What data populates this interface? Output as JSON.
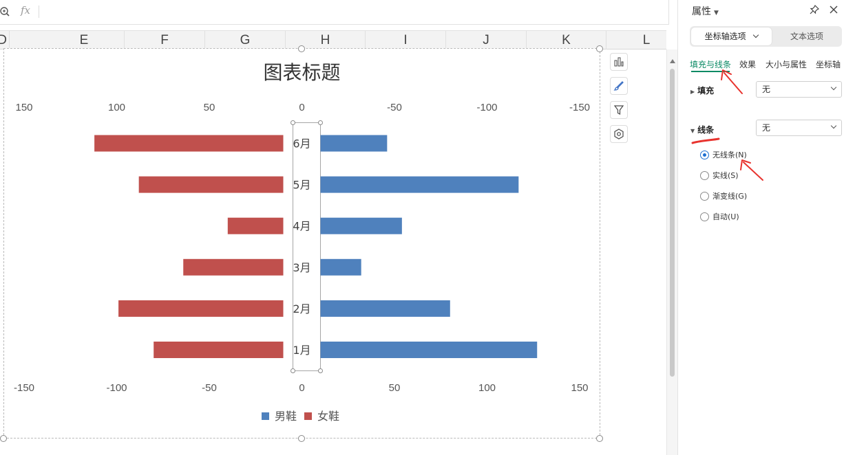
{
  "formula_bar": {
    "fx_label": "fx"
  },
  "columns": [
    "D",
    "E",
    "F",
    "G",
    "H",
    "I",
    "J",
    "K",
    "L"
  ],
  "panel": {
    "title": "属性",
    "segments": {
      "active": "坐标轴选项",
      "inactive": "文本选项"
    },
    "subtabs": [
      "填充与线条",
      "效果",
      "大小与属性",
      "坐标轴"
    ],
    "fill": {
      "label": "填充",
      "value": "无"
    },
    "line": {
      "label": "线条",
      "value": "无",
      "options": [
        "无线条(N)",
        "实线(S)",
        "渐变线(G)",
        "自动(U)"
      ],
      "selected_index": 0
    }
  },
  "chart_data": {
    "type": "bar",
    "title": "图表标题",
    "orientation": "horizontal",
    "categories": [
      "1月",
      "2月",
      "3月",
      "4月",
      "5月",
      "6月"
    ],
    "series": [
      {
        "name": "男鞋",
        "color": "#4f81bd",
        "values": [
          -117,
          -70,
          -22,
          -44,
          -107,
          -36
        ]
      },
      {
        "name": "女鞋",
        "color": "#c0504d",
        "values": [
          70,
          89,
          54,
          30,
          78,
          102
        ]
      }
    ],
    "top_axis_ticks": [
      "150",
      "100",
      "50",
      "0",
      "-50",
      "-100",
      "-150"
    ],
    "bottom_axis_ticks": [
      "-150",
      "-100",
      "-50",
      "0",
      "50",
      "100",
      "150"
    ],
    "xlim": [
      -150,
      150
    ],
    "legend_position": "bottom",
    "grid": false
  }
}
